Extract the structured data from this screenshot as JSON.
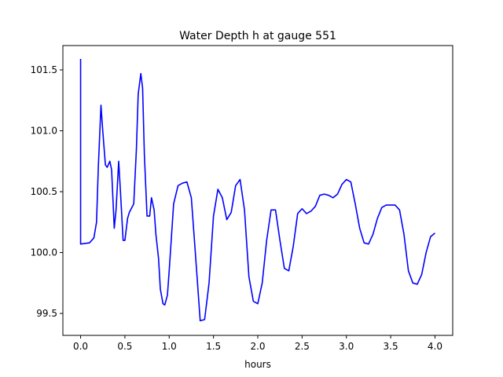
{
  "chart_data": {
    "type": "line",
    "title": "Water Depth h at gauge 551",
    "xlabel": "hours",
    "ylabel": "",
    "xlim": [
      -0.2,
      4.2
    ],
    "ylim": [
      99.32,
      101.7
    ],
    "grid": false,
    "xticks": [
      0.0,
      0.5,
      1.0,
      1.5,
      2.0,
      2.5,
      3.0,
      3.5,
      4.0
    ],
    "xtick_labels": [
      "0.0",
      "0.5",
      "1.0",
      "1.5",
      "2.0",
      "2.5",
      "3.0",
      "3.5",
      "4.0"
    ],
    "yticks": [
      99.5,
      100.0,
      100.5,
      101.0,
      101.5
    ],
    "ytick_labels": [
      "99.5",
      "100.0",
      "100.5",
      "101.0",
      "101.5"
    ],
    "series": [
      {
        "color": "#0000ff",
        "x": [
          0.0,
          0.0,
          0.0,
          0.1,
          0.15,
          0.18,
          0.2,
          0.23,
          0.25,
          0.28,
          0.3,
          0.33,
          0.35,
          0.38,
          0.4,
          0.43,
          0.45,
          0.48,
          0.5,
          0.53,
          0.55,
          0.6,
          0.63,
          0.65,
          0.68,
          0.7,
          0.72,
          0.75,
          0.78,
          0.8,
          0.83,
          0.85,
          0.88,
          0.9,
          0.93,
          0.95,
          0.98,
          1.0,
          1.05,
          1.1,
          1.15,
          1.2,
          1.25,
          1.3,
          1.35,
          1.4,
          1.45,
          1.5,
          1.55,
          1.6,
          1.65,
          1.7,
          1.75,
          1.8,
          1.85,
          1.9,
          1.95,
          2.0,
          2.05,
          2.1,
          2.15,
          2.2,
          2.25,
          2.3,
          2.35,
          2.4,
          2.45,
          2.5,
          2.55,
          2.6,
          2.65,
          2.7,
          2.75,
          2.8,
          2.85,
          2.9,
          2.95,
          3.0,
          3.05,
          3.1,
          3.15,
          3.2,
          3.25,
          3.3,
          3.35,
          3.4,
          3.45,
          3.5,
          3.55,
          3.6,
          3.65,
          3.7,
          3.75,
          3.8,
          3.85,
          3.9,
          3.95,
          4.0
        ],
        "y": [
          101.59,
          100.08,
          100.07,
          100.08,
          100.12,
          100.25,
          100.7,
          101.21,
          101.0,
          100.72,
          100.7,
          100.75,
          100.68,
          100.2,
          100.35,
          100.75,
          100.5,
          100.1,
          100.1,
          100.28,
          100.33,
          100.4,
          100.85,
          101.3,
          101.47,
          101.35,
          100.8,
          100.3,
          100.3,
          100.45,
          100.35,
          100.15,
          99.95,
          99.7,
          99.58,
          99.57,
          99.65,
          99.85,
          100.4,
          100.55,
          100.57,
          100.58,
          100.45,
          99.95,
          99.44,
          99.45,
          99.75,
          100.3,
          100.52,
          100.45,
          100.27,
          100.33,
          100.55,
          100.6,
          100.35,
          99.8,
          99.6,
          99.58,
          99.75,
          100.1,
          100.35,
          100.35,
          100.1,
          99.87,
          99.85,
          100.05,
          100.32,
          100.36,
          100.32,
          100.34,
          100.38,
          100.47,
          100.48,
          100.47,
          100.45,
          100.48,
          100.56,
          100.6,
          100.58,
          100.4,
          100.2,
          100.08,
          100.07,
          100.15,
          100.28,
          100.37,
          100.39,
          100.39,
          100.39,
          100.35,
          100.15,
          99.85,
          99.75,
          99.74,
          99.82,
          100.0,
          100.13,
          100.16
        ]
      }
    ]
  }
}
